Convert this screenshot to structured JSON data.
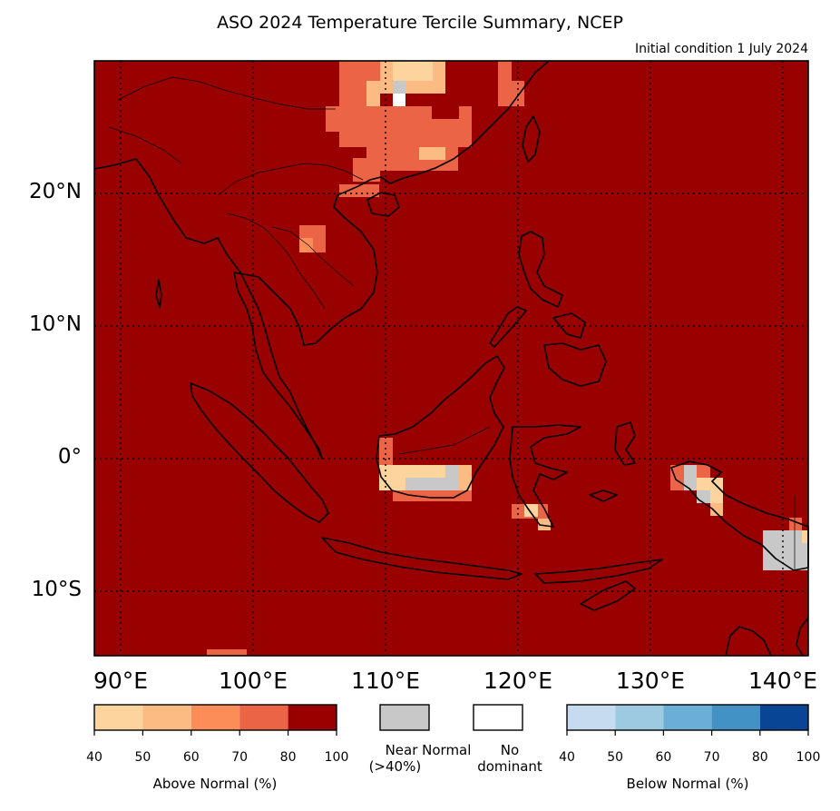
{
  "header": {
    "title": "ASO 2024 Temperature Tercile Summary, NCEP",
    "subtitle": "Initial condition 1 July 2024"
  },
  "map": {
    "lat_labels": [
      "20°N",
      "10°N",
      "0°",
      "10°S"
    ],
    "lon_labels": [
      "90°E",
      "100°E",
      "110°E",
      "120°E",
      "130°E",
      "140°E"
    ],
    "background_category": "above-normal-80-100",
    "colors": {
      "an_80_100": "#990000",
      "an_70_80": "#ec6446",
      "an_60_70": "#fc8d59",
      "an_50_60": "#fdbb84",
      "an_40_50": "#fdd49e",
      "near_normal": "#c8c8c8",
      "no_dominant": "#ffffff",
      "coastline": "#000000"
    }
  },
  "legend": {
    "above": {
      "title": "Above Normal (%)",
      "ticks": [
        "40",
        "50",
        "60",
        "70",
        "80",
        "100"
      ],
      "colors": [
        "#fdd49e",
        "#fdbb84",
        "#fc8d59",
        "#ec6446",
        "#990000"
      ]
    },
    "near_normal": {
      "label_line1": "Near Normal",
      "label_line2": "(>40%)",
      "color": "#c8c8c8"
    },
    "no_dominant": {
      "label_line1": "No",
      "label_line2": "dominant",
      "color": "#ffffff"
    },
    "below": {
      "title": "Below Normal (%)",
      "ticks": [
        "40",
        "50",
        "60",
        "70",
        "80",
        "100"
      ],
      "colors": [
        "#c6dbef",
        "#9ecae1",
        "#6baed6",
        "#4292c6",
        "#084594"
      ]
    }
  }
}
